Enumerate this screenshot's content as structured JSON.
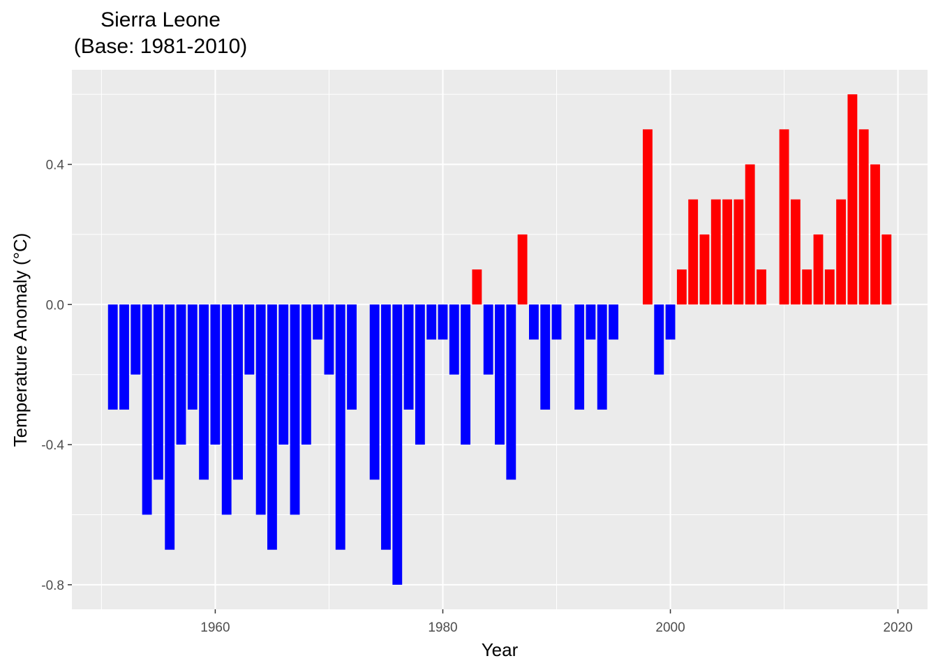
{
  "chart_data": {
    "type": "bar",
    "title_lines": [
      "Sierra Leone",
      "(Base: 1981-2010)"
    ],
    "xlabel": "Year",
    "ylabel": "Temperature Anomaly (°C)",
    "xlim": [
      1947.4,
      2022.6
    ],
    "ylim": [
      -0.87,
      0.67
    ],
    "x_ticks": [
      1960,
      1980,
      2000,
      2020
    ],
    "x_tick_labels": [
      "1960",
      "1980",
      "2000",
      "2020"
    ],
    "y_ticks": [
      -0.8,
      -0.4,
      0.0,
      0.4
    ],
    "y_tick_labels": [
      "-0.8",
      "-0.4",
      "0.0",
      "0.4"
    ],
    "grid": true,
    "legend": "none",
    "colors": {
      "positive": "#ff0000",
      "negative": "#0000ff",
      "panel": "#ebebeb",
      "grid": "#ffffff"
    },
    "x": [
      1951,
      1952,
      1953,
      1954,
      1955,
      1956,
      1957,
      1958,
      1959,
      1960,
      1961,
      1962,
      1963,
      1964,
      1965,
      1966,
      1967,
      1968,
      1969,
      1970,
      1971,
      1972,
      1973,
      1974,
      1975,
      1976,
      1977,
      1978,
      1979,
      1980,
      1981,
      1982,
      1983,
      1984,
      1985,
      1986,
      1987,
      1988,
      1989,
      1990,
      1991,
      1992,
      1993,
      1994,
      1995,
      1996,
      1997,
      1998,
      1999,
      2000,
      2001,
      2002,
      2003,
      2004,
      2005,
      2006,
      2007,
      2008,
      2009,
      2010,
      2011,
      2012,
      2013,
      2014,
      2015,
      2016,
      2017,
      2018,
      2019
    ],
    "values": [
      -0.3,
      -0.3,
      -0.2,
      -0.6,
      -0.5,
      -0.7,
      -0.4,
      -0.3,
      -0.5,
      -0.4,
      -0.6,
      -0.5,
      -0.2,
      -0.6,
      -0.7,
      -0.4,
      -0.6,
      -0.4,
      -0.1,
      -0.2,
      -0.7,
      -0.3,
      0.0,
      -0.5,
      -0.7,
      -0.8,
      -0.3,
      -0.4,
      -0.1,
      -0.1,
      -0.2,
      -0.4,
      0.1,
      -0.2,
      -0.4,
      -0.5,
      0.2,
      -0.1,
      -0.3,
      -0.1,
      0.0,
      -0.3,
      -0.1,
      -0.3,
      -0.1,
      0.0,
      0.0,
      0.5,
      -0.2,
      -0.1,
      0.1,
      0.3,
      0.2,
      0.3,
      0.3,
      0.3,
      0.4,
      0.1,
      0.0,
      0.5,
      0.3,
      0.1,
      0.2,
      0.1,
      0.3,
      0.6,
      0.5,
      0.4,
      0.2
    ]
  }
}
